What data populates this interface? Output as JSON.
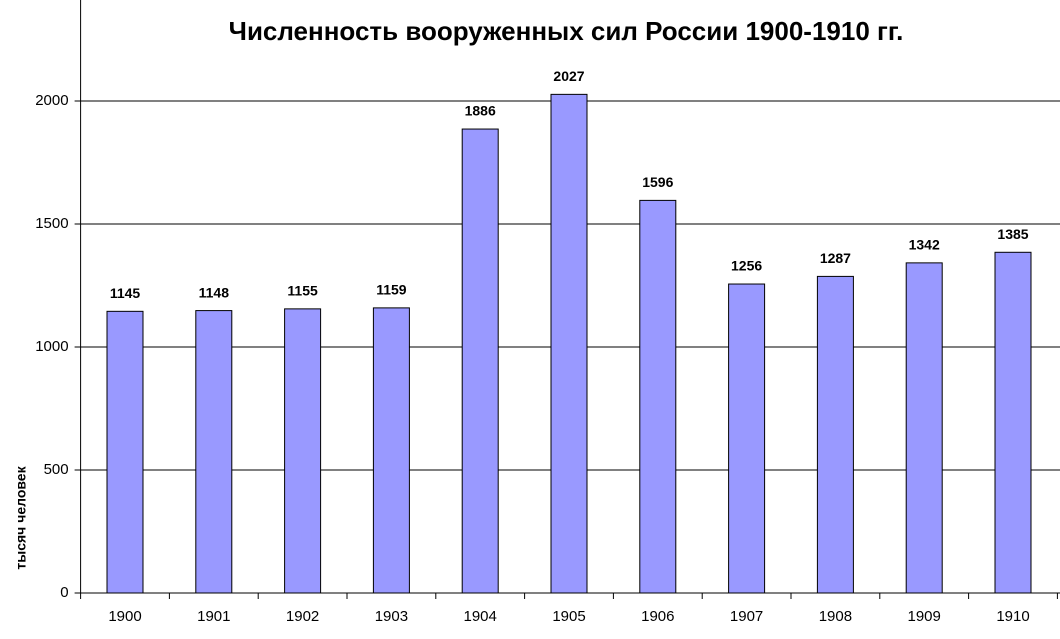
{
  "chart_data": {
    "type": "bar",
    "title": "Численность вооруженных сил России 1900-1910 гг.",
    "y_label": "тысяч человек",
    "categories": [
      "1900",
      "1901",
      "1902",
      "1903",
      "1904",
      "1905",
      "1906",
      "1907",
      "1908",
      "1909",
      "1910"
    ],
    "values": [
      1145,
      1148,
      1155,
      1159,
      1886,
      2027,
      1596,
      1256,
      1287,
      1342,
      1385
    ],
    "color": "#9999ff",
    "ylim": [
      0,
      2400
    ],
    "yticks": [
      0,
      500,
      1000,
      1500,
      2000
    ],
    "grid": true
  }
}
